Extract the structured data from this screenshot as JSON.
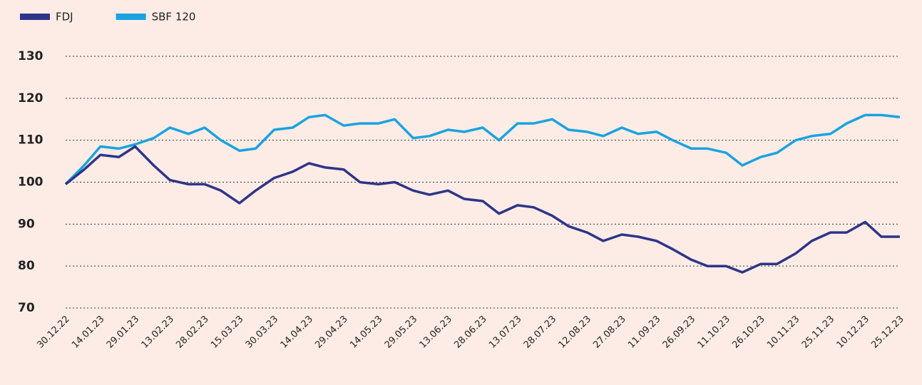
{
  "chart_data": {
    "type": "line",
    "x": [
      "30.12.22",
      "07.01.23",
      "14.01.23",
      "22.01.23",
      "29.01.23",
      "06.02.23",
      "13.02.23",
      "21.02.23",
      "28.02.23",
      "07.03.23",
      "15.03.23",
      "22.03.23",
      "30.03.23",
      "07.04.23",
      "14.04.23",
      "21.04.23",
      "29.04.23",
      "06.05.23",
      "14.05.23",
      "21.05.23",
      "29.05.23",
      "05.06.23",
      "13.06.23",
      "20.06.23",
      "28.06.23",
      "05.07.23",
      "13.07.23",
      "20.07.23",
      "28.07.23",
      "04.08.23",
      "12.08.23",
      "19.08.23",
      "27.08.23",
      "03.09.23",
      "11.09.23",
      "18.09.23",
      "26.09.23",
      "03.10.23",
      "11.10.23",
      "18.10.23",
      "26.10.23",
      "02.11.23",
      "10.11.23",
      "17.11.23",
      "25.11.23",
      "02.12.23",
      "10.12.23",
      "17.12.23",
      "25.12.23"
    ],
    "series": [
      {
        "name": "FDJ",
        "color": "#2e3588",
        "values": [
          99.5,
          103,
          106.5,
          106,
          108.5,
          104,
          100.5,
          99.5,
          99.5,
          98,
          95,
          98,
          101,
          102.5,
          104.5,
          103.5,
          103,
          100,
          99.5,
          100,
          98,
          97,
          98,
          96,
          95.5,
          92.5,
          94.5,
          94,
          92,
          89.5,
          88,
          86,
          87.5,
          87,
          86,
          84,
          81.5,
          80,
          80,
          78.5,
          80.5,
          80.5,
          83,
          86,
          88,
          88,
          90.5,
          87,
          87
        ]
      },
      {
        "name": "SBF 120",
        "color": "#1aa3e0",
        "values": [
          99.5,
          104,
          108.5,
          108,
          109,
          110.5,
          113,
          111.5,
          113,
          110,
          107.5,
          108,
          112.5,
          113,
          115.5,
          116,
          113.5,
          114,
          114,
          115,
          110.5,
          111,
          112.5,
          112,
          113,
          110,
          114,
          114,
          115,
          112.5,
          112,
          111,
          113,
          111.5,
          112,
          110,
          108,
          108,
          107,
          104,
          106,
          107,
          110,
          111,
          111.5,
          114,
          116,
          116,
          115.5
        ]
      }
    ],
    "xlim": [
      "30.12.22",
      "25.12.23"
    ],
    "xticks": [
      "30.12.22",
      "14.01.23",
      "29.01.23",
      "13.02.23",
      "28.02.23",
      "15.03.23",
      "30.03.23",
      "14.04.23",
      "29.04.23",
      "14.05.23",
      "29.05.23",
      "13.06.23",
      "28.06.23",
      "13.07.23",
      "28.07.23",
      "12.08.23",
      "27.08.23",
      "11.09.23",
      "26.09.23",
      "11.10.23",
      "26.10.23",
      "10.11.23",
      "25.11.23",
      "10.12.23",
      "25.12.23"
    ],
    "ylim": [
      70,
      130
    ],
    "yticks": [
      70,
      80,
      90,
      100,
      110,
      120,
      130
    ],
    "grid": true
  }
}
